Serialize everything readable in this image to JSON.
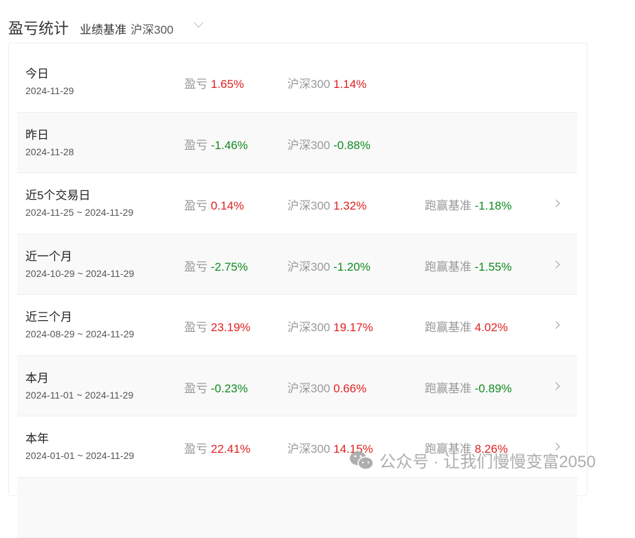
{
  "header": {
    "title": "盈亏统计",
    "benchmark_label": "业绩基准",
    "benchmark_value": "沪深300"
  },
  "labels": {
    "pnl": "盈亏",
    "bench": "沪深300",
    "excess": "跑赢基准"
  },
  "rows": [
    {
      "name": "今日",
      "date": "2024-11-29",
      "pnl": "1.65%",
      "bench": "1.14%",
      "pnl_dir": "up",
      "bench_dir": "up"
    },
    {
      "name": "昨日",
      "date": "2024-11-28",
      "pnl": "-1.46%",
      "bench": "-0.88%",
      "pnl_dir": "down",
      "bench_dir": "down"
    },
    {
      "name": "近5个交易日",
      "date": "2024-11-25 ~ 2024-11-29",
      "pnl": "0.14%",
      "bench": "1.32%",
      "excess": "-1.18%",
      "pnl_dir": "up",
      "bench_dir": "up",
      "excess_dir": "down"
    },
    {
      "name": "近一个月",
      "date": "2024-10-29 ~ 2024-11-29",
      "pnl": "-2.75%",
      "bench": "-1.20%",
      "excess": "-1.55%",
      "pnl_dir": "down",
      "bench_dir": "down",
      "excess_dir": "down"
    },
    {
      "name": "近三个月",
      "date": "2024-08-29 ~ 2024-11-29",
      "pnl": "23.19%",
      "bench": "19.17%",
      "excess": "4.02%",
      "pnl_dir": "up",
      "bench_dir": "up",
      "excess_dir": "up"
    },
    {
      "name": "本月",
      "date": "2024-11-01 ~ 2024-11-29",
      "pnl": "-0.23%",
      "bench": "0.66%",
      "excess": "-0.89%",
      "pnl_dir": "down",
      "bench_dir": "up",
      "excess_dir": "down"
    },
    {
      "name": "本年",
      "date": "2024-01-01 ~ 2024-11-29",
      "pnl": "22.41%",
      "bench": "14.15%",
      "excess": "8.26%",
      "pnl_dir": "up",
      "bench_dir": "up",
      "excess_dir": "up"
    }
  ],
  "watermark": "公众号 · 让我们慢慢变富2050",
  "colors": {
    "up": "#e02020",
    "down": "#108a20"
  }
}
